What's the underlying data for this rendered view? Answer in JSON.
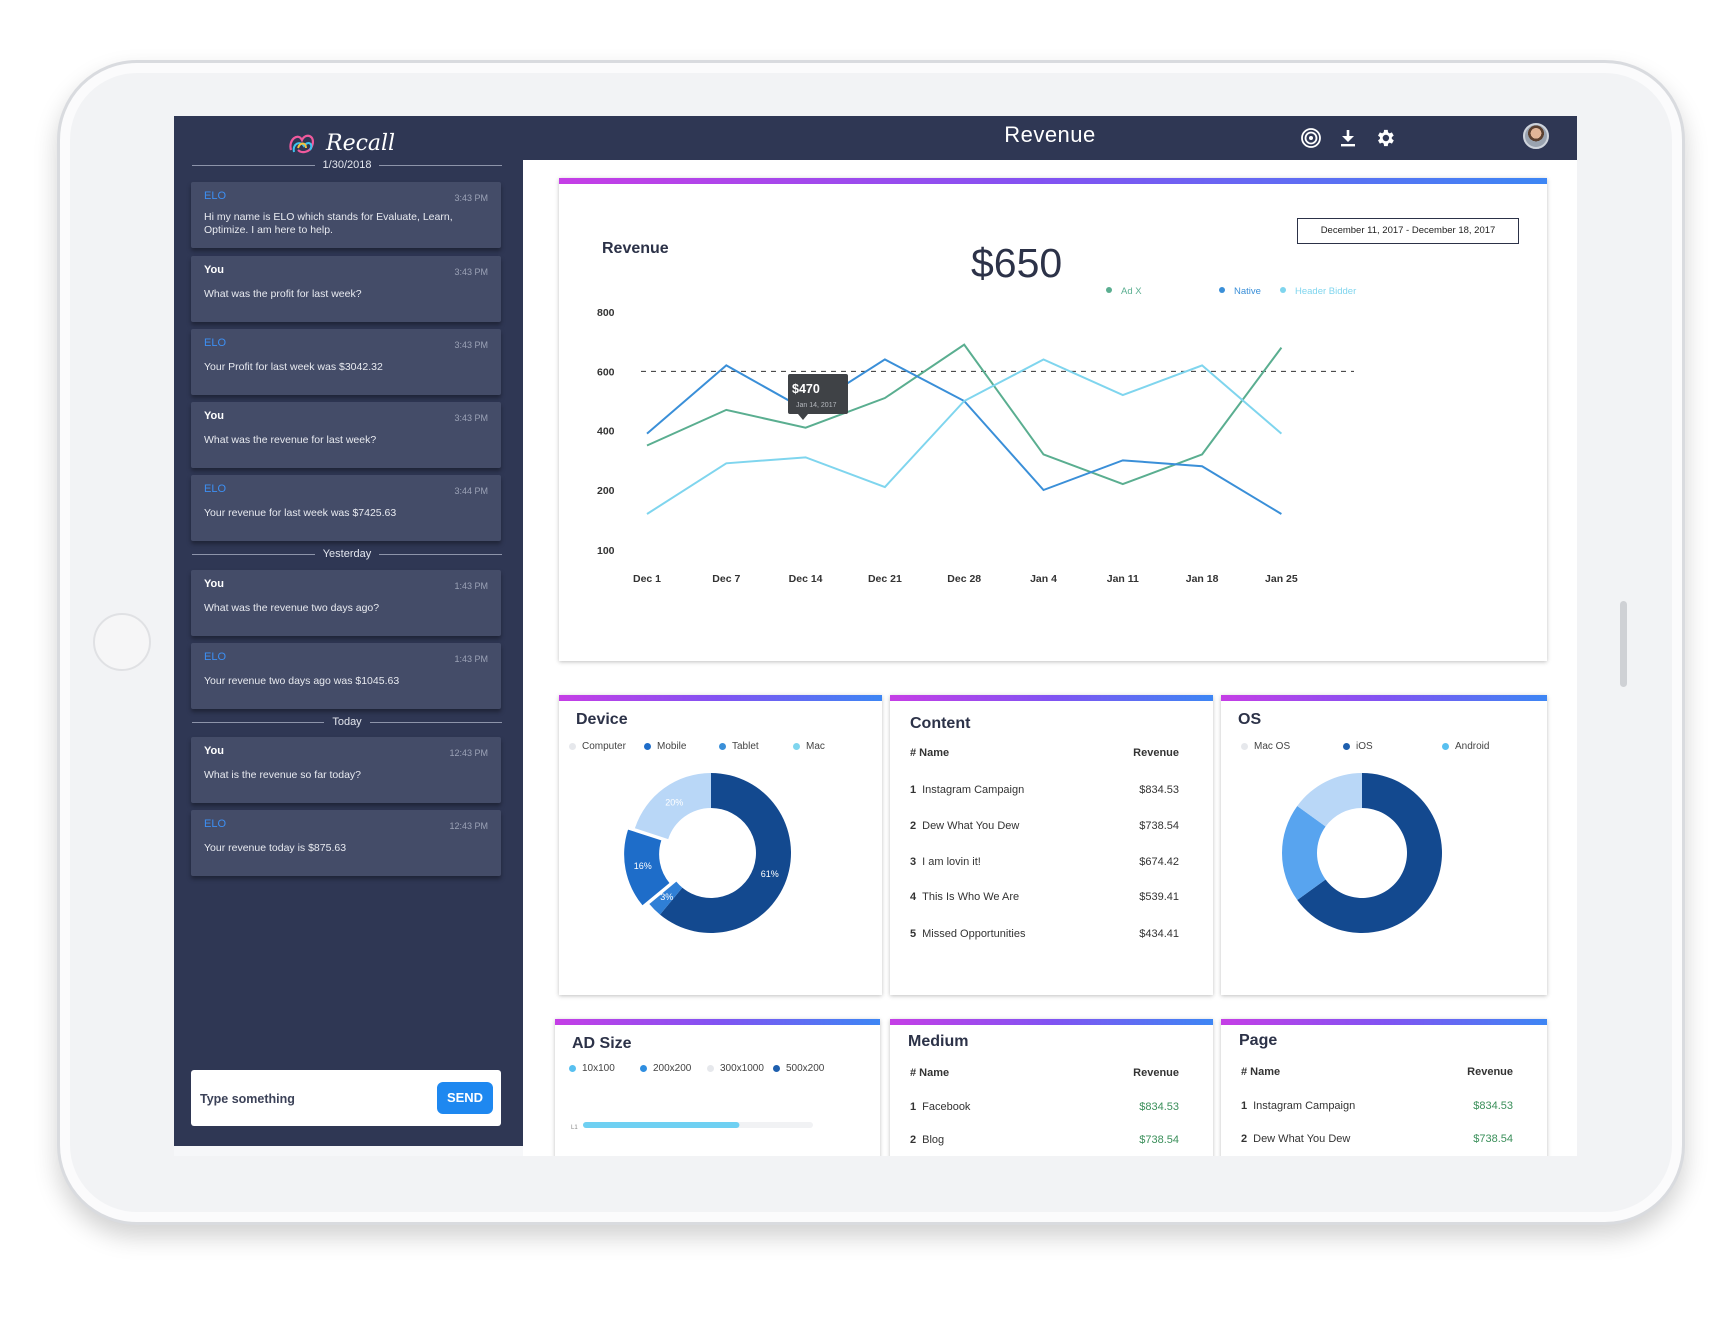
{
  "app": {
    "name": "Recall",
    "page_title": "Revenue"
  },
  "header_icons": [
    "target-icon",
    "download-icon",
    "gear-icon",
    "avatar"
  ],
  "chat": {
    "groups": [
      {
        "label": "1/30/2018",
        "messages": [
          {
            "sender": "ELO",
            "time": "3:43 PM",
            "text": "Hi my name is ELO which stands for Evaluate, Learn, Optimize. I am here to help."
          },
          {
            "sender": "You",
            "time": "3:43 PM",
            "text": "What was the profit for last week?"
          },
          {
            "sender": "ELO",
            "time": "3:43 PM",
            "text": "Your Profit for last week was $3042.32"
          },
          {
            "sender": "You",
            "time": "3:43 PM",
            "text": "What was the revenue for last week?"
          },
          {
            "sender": "ELO",
            "time": "3:44 PM",
            "text": "Your revenue for last week was $7425.63"
          }
        ]
      },
      {
        "label": "Yesterday",
        "messages": [
          {
            "sender": "You",
            "time": "1:43 PM",
            "text": "What was the revenue two days ago?"
          },
          {
            "sender": "ELO",
            "time": "1:43 PM",
            "text": "Your revenue two days ago was $1045.63"
          }
        ]
      },
      {
        "label": "Today",
        "messages": [
          {
            "sender": "You",
            "time": "12:43 PM",
            "text": "What is the revenue so far today?"
          },
          {
            "sender": "ELO",
            "time": "12:43 PM",
            "text": "Your revenue today is $875.63"
          }
        ]
      }
    ],
    "input_placeholder": "Type something",
    "send_label": "SEND"
  },
  "revenue_card": {
    "title": "Revenue",
    "total": "$650",
    "date_range": "December 11, 2017 - December 18, 2017",
    "tooltip": {
      "value": "$470",
      "date": "Jan 14, 2017"
    }
  },
  "chart_data": [
    {
      "type": "line",
      "title": "Revenue",
      "x": [
        "Dec 1",
        "Dec 7",
        "Dec 14",
        "Dec 21",
        "Dec 28",
        "Jan 4",
        "Jan 11",
        "Jan 18",
        "Jan 25"
      ],
      "y_ticks": [
        100,
        200,
        400,
        600,
        800
      ],
      "ylim": [
        100,
        800
      ],
      "reference_line": 600,
      "legend_position": "top-right",
      "grid": false,
      "series": [
        {
          "name": "Ad X",
          "color": "#5aae90",
          "values": [
            350,
            470,
            410,
            510,
            690,
            320,
            220,
            320,
            680
          ]
        },
        {
          "name": "Native",
          "color": "#3a8fd8",
          "values": [
            390,
            620,
            470,
            640,
            500,
            200,
            300,
            280,
            160
          ]
        },
        {
          "name": "Header Bidder",
          "color": "#7fd5ee",
          "values": [
            160,
            290,
            310,
            210,
            500,
            640,
            520,
            620,
            390
          ]
        }
      ]
    },
    {
      "type": "pie",
      "title": "Device",
      "labels": [
        "Mac",
        "Computer",
        "Tablet",
        "Mobile"
      ],
      "values": [
        61,
        3,
        16,
        20
      ],
      "value_labels": [
        "61%",
        "3%",
        "16%",
        "20%"
      ],
      "colors": [
        "#13498f",
        "#2f7fd6",
        "#1e6dc9",
        "#b9d7f7"
      ],
      "legend": [
        "Computer",
        "Mobile",
        "Tablet",
        "Mac"
      ],
      "legend_colors": [
        "#e6e8ec",
        "#1e6dc9",
        "#3a8fd8",
        "#7fd5ee"
      ]
    },
    {
      "type": "pie",
      "title": "OS",
      "labels": [
        "iOS",
        "Android",
        "Mac OS"
      ],
      "values": [
        65,
        20,
        15
      ],
      "colors": [
        "#13498f",
        "#58a4ef",
        "#b9d7f7"
      ],
      "legend": [
        "Mac OS",
        "iOS",
        "Android"
      ],
      "legend_colors": [
        "#e6e8ec",
        "#1e5fae",
        "#58c0f0"
      ]
    },
    {
      "type": "bar",
      "title": "AD Size",
      "legend": [
        "10x100",
        "200x200",
        "300x1000",
        "500x200"
      ],
      "legend_colors": [
        "#58c0f0",
        "#2f8ee0",
        "#e6e8ec",
        "#1e5fae"
      ],
      "categories": [
        "L1"
      ],
      "values": [
        68
      ],
      "xlim": [
        0,
        100
      ]
    }
  ],
  "content_table": {
    "title": "Content",
    "headers": [
      "# Name",
      "Revenue"
    ],
    "rows": [
      {
        "rank": "1",
        "name": "Instagram Campaign",
        "revenue": "$834.53"
      },
      {
        "rank": "2",
        "name": "Dew What You Dew",
        "revenue": "$738.54"
      },
      {
        "rank": "3",
        "name": "I am lovin it!",
        "revenue": "$674.42"
      },
      {
        "rank": "4",
        "name": "This Is Who We Are",
        "revenue": "$539.41"
      },
      {
        "rank": "5",
        "name": "Missed Opportunities",
        "revenue": "$434.41"
      }
    ]
  },
  "medium_table": {
    "title": "Medium",
    "headers": [
      "# Name",
      "Revenue"
    ],
    "rows": [
      {
        "rank": "1",
        "name": "Facebook",
        "revenue": "$834.53"
      },
      {
        "rank": "2",
        "name": "Blog",
        "revenue": "$738.54"
      }
    ]
  },
  "page_table": {
    "title": "Page",
    "headers": [
      "# Name",
      "Revenue"
    ],
    "rows": [
      {
        "rank": "1",
        "name": "Instagram Campaign",
        "revenue": "$834.53"
      },
      {
        "rank": "2",
        "name": "Dew What You Dew",
        "revenue": "$738.54"
      }
    ]
  }
}
